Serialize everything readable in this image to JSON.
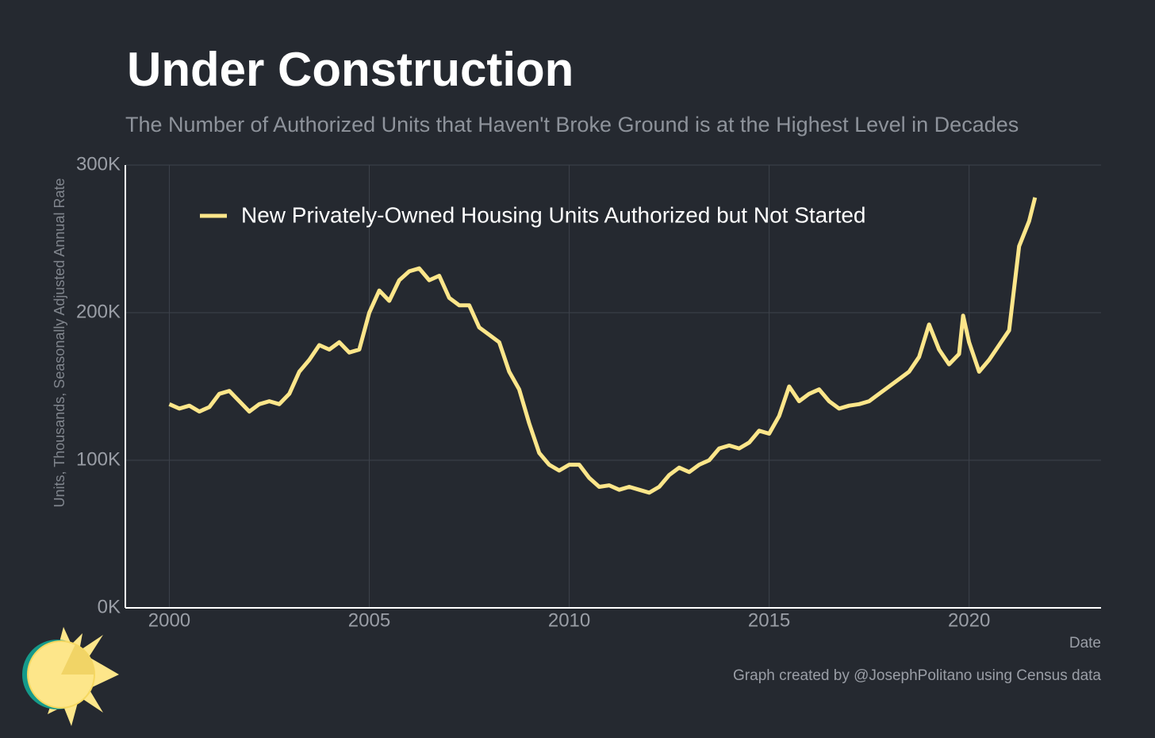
{
  "chart_data": {
    "type": "line",
    "title": "Under Construction",
    "subtitle": "The Number of Authorized Units that Haven't Broke Ground is at the Highest Level in Decades",
    "y_label": "Units, Thousands, Seasonally Adjusted Annual Rate",
    "x_label": "Date",
    "caption": "Graph created by @JosephPolitano using Census data",
    "x": [
      2000,
      2000.25,
      2000.5,
      2000.75,
      2001,
      2001.25,
      2001.5,
      2001.75,
      2002,
      2002.25,
      2002.5,
      2002.75,
      2003,
      2003.25,
      2003.5,
      2003.75,
      2004,
      2004.25,
      2004.5,
      2004.75,
      2005,
      2005.25,
      2005.5,
      2005.75,
      2006,
      2006.25,
      2006.5,
      2006.75,
      2007,
      2007.25,
      2007.5,
      2007.75,
      2008,
      2008.25,
      2008.5,
      2008.75,
      2009,
      2009.25,
      2009.5,
      2009.75,
      2010,
      2010.25,
      2010.5,
      2010.75,
      2011,
      2011.25,
      2011.5,
      2011.75,
      2012,
      2012.25,
      2012.5,
      2012.75,
      2013,
      2013.25,
      2013.5,
      2013.75,
      2014,
      2014.25,
      2014.5,
      2014.75,
      2015,
      2015.25,
      2015.5,
      2015.75,
      2016,
      2016.25,
      2016.5,
      2016.75,
      2017,
      2017.25,
      2017.5,
      2017.75,
      2018,
      2018.25,
      2018.5,
      2018.75,
      2019,
      2019.25,
      2019.5,
      2019.75,
      2019.85,
      2020,
      2020.25,
      2020.5,
      2020.75,
      2021,
      2021.25,
      2021.5,
      2021.65
    ],
    "series": [
      {
        "name": "New Privately-Owned Housing Units Authorized but Not Started",
        "color": "#fde68a",
        "values": [
          138,
          135,
          137,
          133,
          136,
          145,
          147,
          140,
          133,
          138,
          140,
          138,
          145,
          160,
          168,
          178,
          175,
          180,
          173,
          175,
          200,
          215,
          208,
          222,
          228,
          230,
          222,
          225,
          210,
          205,
          205,
          190,
          185,
          180,
          160,
          148,
          125,
          105,
          97,
          93,
          97,
          97,
          88,
          82,
          83,
          80,
          82,
          80,
          78,
          82,
          90,
          95,
          92,
          97,
          100,
          108,
          110,
          108,
          112,
          120,
          118,
          130,
          150,
          140,
          145,
          148,
          140,
          135,
          137,
          138,
          140,
          145,
          150,
          155,
          160,
          170,
          192,
          175,
          165,
          172,
          198,
          180,
          160,
          168,
          178,
          188,
          245,
          262,
          278
        ]
      }
    ],
    "xlim": [
      1998.9,
      2023.3
    ],
    "ylim": [
      0,
      300
    ],
    "xticks": [
      2000,
      2005,
      2010,
      2015,
      2020
    ],
    "yticks": [
      {
        "value": 0,
        "label": "0K"
      },
      {
        "value": 100,
        "label": "100K"
      },
      {
        "value": 200,
        "label": "200K"
      },
      {
        "value": 300,
        "label": "300K"
      }
    ],
    "grid": true
  }
}
